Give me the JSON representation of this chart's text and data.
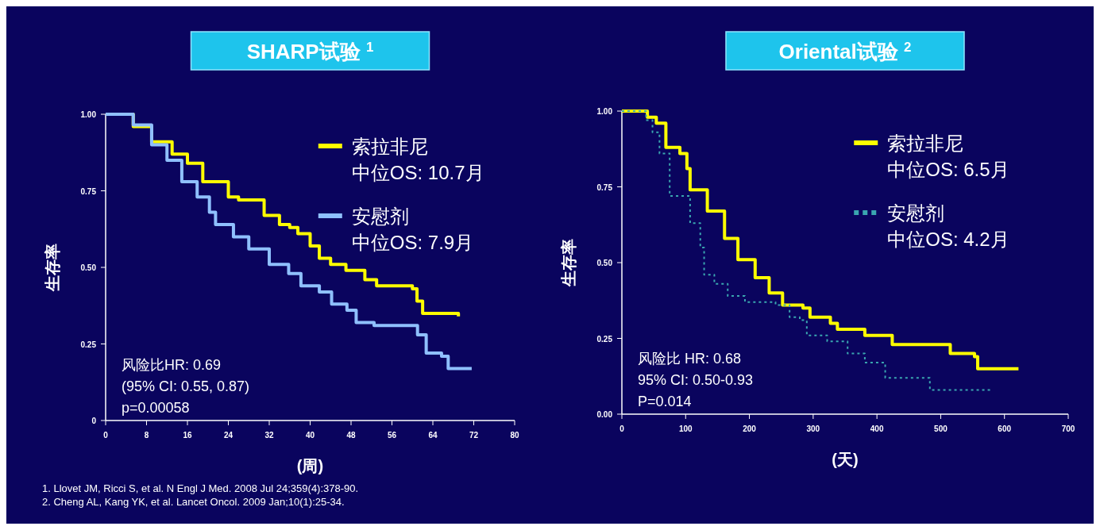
{
  "chart_data": [
    {
      "type": "step",
      "title": "SHARP试验 $^{1}$",
      "ylabel": "生存率",
      "xlabel": "(周)",
      "xlim": [
        0,
        80
      ],
      "xticks": [
        0,
        8,
        16,
        24,
        32,
        40,
        48,
        56,
        64,
        72,
        80
      ],
      "ylim": [
        0,
        1
      ],
      "yticks": [
        0,
        {
          "value": 0.25,
          "label": "0.25"
        },
        {
          "value": 0.5,
          "label": "0.50"
        },
        {
          "value": 0.75,
          "label": "0.75"
        },
        {
          "value": 1,
          "label": "1.00"
        }
      ],
      "legend": "top right",
      "series": [
        {
          "name": "索拉非尼",
          "color": "#ffff00",
          "x": [
            0,
            5.4,
            9,
            13,
            16,
            19,
            24,
            26,
            31,
            34,
            36,
            37.6,
            40,
            41.8,
            44,
            47,
            50.7,
            53,
            57,
            60,
            60.9,
            62,
            69
          ],
          "values": [
            1.0,
            0.96,
            0.91,
            0.87,
            0.84,
            0.78,
            0.73,
            0.72,
            0.67,
            0.64,
            0.63,
            0.61,
            0.57,
            0.53,
            0.51,
            0.49,
            0.46,
            0.44,
            0.44,
            0.43,
            0.39,
            0.35,
            0.34
          ]
        },
        {
          "name": "安慰剂",
          "color": "#8fc0ff",
          "x": [
            0,
            5.4,
            9,
            12,
            14.9,
            17.9,
            20.3,
            21.5,
            25,
            28,
            32,
            35.8,
            38.2,
            41.8,
            44.2,
            47.2,
            49,
            52.5,
            58.5,
            61,
            62.7,
            65.7,
            67,
            71.6
          ],
          "values": [
            1.0,
            0.965,
            0.9,
            0.85,
            0.78,
            0.73,
            0.68,
            0.64,
            0.6,
            0.56,
            0.51,
            0.48,
            0.44,
            0.42,
            0.38,
            0.36,
            0.32,
            0.31,
            0.31,
            0.28,
            0.22,
            0.21,
            0.17,
            0.17
          ]
        }
      ],
      "annotations": [
        "中位OS: 10.7月",
        "中位OS: 7.9月",
        "风险比HR: 0.69",
        "(95% CI: 0.55, 0.87)",
        "p=0.00058",
        "1. Llovet JM, Ricci S, et al. N Engl J Med. 2008 Jul 24;359(4):378-90.",
        "2. Cheng AL, Kang YK, et al. Lancet Oncol. 2009 Jan;10(1):25-34."
      ]
    },
    {
      "type": "step",
      "title": "Oriental试验 $^{2}$",
      "ylabel": "生存率",
      "xlabel": "(天)",
      "xlim": [
        0,
        700
      ],
      "xticks": [
        0,
        100,
        200,
        300,
        400,
        500,
        600,
        700
      ],
      "ylim": [
        0,
        1
      ],
      "yticks": [
        {
          "value": 0,
          "label": "0.00"
        },
        {
          "value": 0.25,
          "label": "0.25"
        },
        {
          "value": 0.5,
          "label": "0.50"
        },
        {
          "value": 0.75,
          "label": "0.75"
        },
        {
          "value": 1,
          "label": "1.00"
        }
      ],
      "legend": "top right",
      "series": [
        {
          "name": "索拉非尼",
          "color": "#ffff00",
          "x": [
            0,
            40,
            54,
            69,
            91,
            102,
            107,
            134,
            161,
            182,
            209,
            231,
            252,
            284,
            295,
            327,
            338,
            381,
            424,
            488,
            515,
            553,
            558,
            622
          ],
          "values": [
            1.0,
            0.98,
            0.96,
            0.88,
            0.86,
            0.81,
            0.74,
            0.67,
            0.58,
            0.51,
            0.45,
            0.4,
            0.36,
            0.35,
            0.32,
            0.3,
            0.28,
            0.26,
            0.23,
            0.23,
            0.2,
            0.19,
            0.15,
            0.15
          ]
        },
        {
          "name": "安慰剂",
          "color": "#3aa6b0",
          "line_style": "dotted",
          "x": [
            0,
            38,
            48,
            59,
            75,
            107,
            123,
            129,
            145,
            166,
            193,
            241,
            263,
            279,
            290,
            322,
            354,
            381,
            413,
            477,
            483,
            579
          ],
          "values": [
            1.0,
            0.97,
            0.93,
            0.86,
            0.72,
            0.63,
            0.55,
            0.46,
            0.43,
            0.39,
            0.37,
            0.36,
            0.32,
            0.31,
            0.26,
            0.24,
            0.2,
            0.17,
            0.12,
            0.12,
            0.08,
            0.08
          ]
        }
      ],
      "annotations": [
        "中位OS: 6.5月",
        "中位OS: 4.2月",
        "风险比 HR: 0.68",
        "95% CI: 0.50-0.93",
        "P=0.014"
      ]
    }
  ]
}
